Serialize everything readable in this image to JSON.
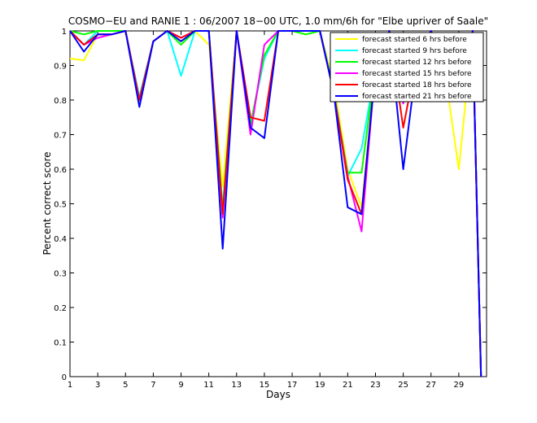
{
  "chart_data": {
    "type": "line",
    "title": "COSMO−EU and RANIE 1 : 06/2007 18−00 UTC, 1.0 mm/6h for \"Elbe upriver of Saale\"",
    "xlabel": "Days",
    "ylabel": "Percent correct score",
    "xlim": [
      1,
      31
    ],
    "ylim": [
      0,
      1
    ],
    "x_ticks": [
      1,
      3,
      5,
      7,
      9,
      11,
      13,
      15,
      17,
      19,
      21,
      23,
      25,
      27,
      29
    ],
    "y_ticks": [
      0,
      0.1,
      0.2,
      0.3,
      0.4,
      0.5,
      0.6,
      0.7,
      0.8,
      0.9,
      1
    ],
    "x_tick_labels": [
      "1",
      "3",
      "5",
      "7",
      "9",
      "11",
      "13",
      "15",
      "17",
      "19",
      "21",
      "23",
      "25",
      "27",
      "29"
    ],
    "y_tick_labels": [
      "0",
      "0.1",
      "0.2",
      "0.3",
      "0.4",
      "0.5",
      "0.6",
      "0.7",
      "0.8",
      "0.9",
      "1"
    ],
    "legend_position": "top-right",
    "grid": false,
    "x": [
      1,
      2,
      3,
      4,
      5,
      6,
      7,
      8,
      9,
      10,
      11,
      12,
      13,
      14,
      15,
      16,
      17,
      18,
      19,
      20,
      21,
      22,
      23,
      24,
      25,
      26,
      27,
      28,
      29,
      30,
      30.6
    ],
    "series": [
      {
        "name": "forecast started 6 hrs before",
        "color": "#ffff00",
        "values": [
          0.92,
          0.915,
          0.99,
          0.99,
          1.0,
          0.79,
          0.97,
          1.0,
          0.97,
          1.0,
          0.96,
          0.55,
          1.0,
          0.72,
          0.93,
          1.0,
          1.0,
          0.99,
          1.0,
          0.85,
          0.6,
          0.49,
          0.89,
          1.0,
          0.93,
          0.96,
          1.0,
          0.88,
          0.6,
          1.0,
          0.0
        ]
      },
      {
        "name": "forecast started 9 hrs before",
        "color": "#00ffff",
        "values": [
          1.0,
          0.96,
          1.0,
          1.0,
          1.0,
          0.81,
          0.97,
          1.0,
          0.87,
          1.0,
          1.0,
          0.49,
          1.0,
          0.73,
          0.92,
          1.0,
          1.0,
          1.0,
          1.0,
          0.83,
          0.58,
          0.66,
          0.89,
          1.0,
          0.85,
          0.94,
          1.0,
          0.9,
          0.84,
          1.0,
          0.0
        ]
      },
      {
        "name": "forecast started 12 hrs before",
        "color": "#00ff00",
        "values": [
          1.0,
          0.99,
          1.0,
          1.0,
          1.0,
          0.8,
          0.97,
          1.0,
          0.96,
          1.0,
          1.0,
          0.48,
          1.0,
          0.73,
          0.93,
          1.0,
          1.0,
          0.99,
          1.0,
          0.82,
          0.59,
          0.59,
          0.9,
          1.0,
          0.83,
          0.95,
          1.0,
          0.9,
          0.87,
          1.0,
          0.0
        ]
      },
      {
        "name": "forecast started 15 hrs before",
        "color": "#ff00ff",
        "values": [
          1.0,
          0.96,
          0.98,
          0.99,
          1.0,
          0.8,
          0.97,
          1.0,
          0.98,
          1.0,
          1.0,
          0.46,
          1.0,
          0.7,
          0.96,
          1.0,
          1.0,
          1.0,
          1.0,
          0.82,
          0.58,
          0.42,
          0.9,
          1.0,
          0.79,
          0.94,
          1.0,
          0.88,
          0.8,
          1.0,
          0.0
        ]
      },
      {
        "name": "forecast started 18 hrs before",
        "color": "#ff0000",
        "values": [
          1.0,
          0.96,
          0.99,
          0.99,
          1.0,
          0.8,
          0.97,
          1.0,
          0.98,
          1.0,
          1.0,
          0.47,
          1.0,
          0.75,
          0.74,
          1.0,
          1.0,
          1.0,
          1.0,
          0.82,
          0.57,
          0.47,
          0.9,
          1.0,
          0.72,
          0.93,
          1.0,
          0.9,
          0.85,
          1.0,
          0.0
        ]
      },
      {
        "name": "forecast started 21 hrs before",
        "color": "#0000ff",
        "values": [
          1.0,
          0.94,
          0.99,
          0.99,
          1.0,
          0.78,
          0.97,
          1.0,
          0.97,
          1.0,
          1.0,
          0.37,
          1.0,
          0.72,
          0.69,
          1.0,
          1.0,
          1.0,
          1.0,
          0.82,
          0.49,
          0.47,
          0.89,
          1.0,
          0.6,
          0.92,
          1.0,
          0.89,
          0.86,
          1.0,
          0.0
        ]
      }
    ]
  }
}
